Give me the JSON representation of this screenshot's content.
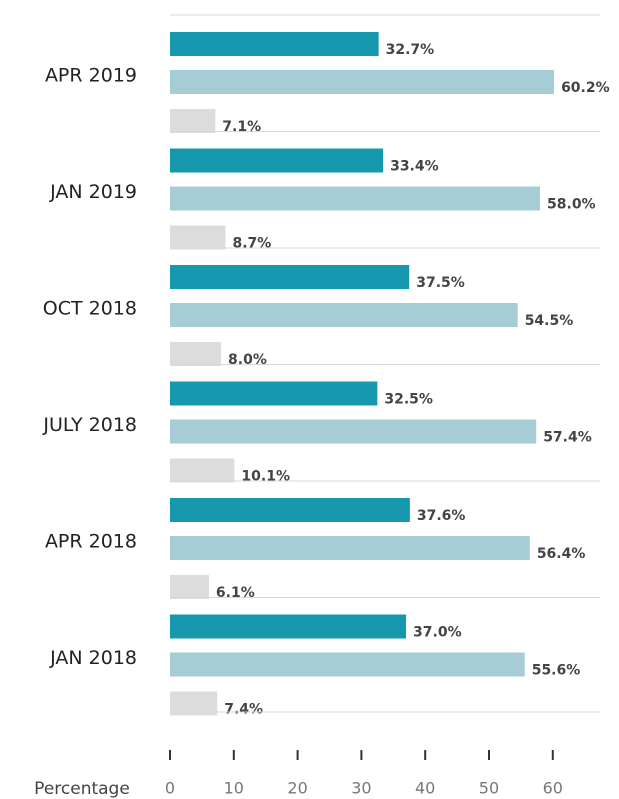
{
  "chart_data": {
    "type": "hbar",
    "categories": [
      "APR 2019",
      "JAN 2019",
      "OCT 2018",
      "JULY 2018",
      "APR 2018",
      "JAN 2018"
    ],
    "series": [
      {
        "color": "#1597ad",
        "values": [
          32.7,
          33.4,
          37.5,
          32.5,
          37.6,
          37.0
        ],
        "value_labels": [
          "32.7%",
          "33.4%",
          "37.5%",
          "32.5%",
          "37.6%",
          "37.0%"
        ]
      },
      {
        "color": "#a6cdd6",
        "values": [
          60.2,
          58.0,
          54.5,
          57.4,
          56.4,
          55.6
        ],
        "value_labels": [
          "60.2%",
          "58.0%",
          "54.5%",
          "57.4%",
          "56.4%",
          "55.6%"
        ]
      },
      {
        "color": "#dcdcdc",
        "values": [
          7.1,
          8.7,
          8.0,
          10.1,
          6.1,
          7.4
        ],
        "value_labels": [
          "7.1%",
          "8.7%",
          "8.0%",
          "10.1%",
          "6.1%",
          "7.4%"
        ]
      }
    ],
    "xlabel": "Percentage",
    "xlim": [
      0,
      67.4
    ],
    "xticks": [
      0,
      10,
      20,
      30,
      40,
      50,
      60
    ]
  }
}
